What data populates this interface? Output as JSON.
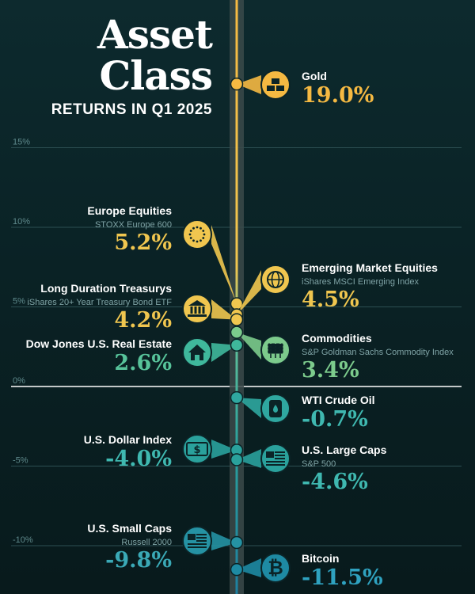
{
  "title": {
    "line1": "Asset",
    "line2": "Class",
    "subtitle": "RETURNS IN Q1 2025"
  },
  "colors": {
    "background": "#0b2427",
    "axis_bar": "#3b4a4a",
    "gold": "#f5b942",
    "yellow": "#f0c64f",
    "green": "#7ccb8c",
    "teal": "#2fa7a0",
    "blue": "#1e8aa3",
    "zero_line": "#ffffff"
  },
  "chart_data": {
    "type": "dot",
    "title": "Asset Class Returns in Q1 2025",
    "y_unit": "%",
    "ylim": [
      -12.5,
      20
    ],
    "yticks": [
      {
        "value": 15,
        "label": "15%"
      },
      {
        "value": 10,
        "label": "10%"
      },
      {
        "value": 5,
        "label": "5%"
      },
      {
        "value": 0,
        "label": "0%"
      },
      {
        "value": -5,
        "label": "-5%"
      },
      {
        "value": -10,
        "label": "-10%"
      }
    ],
    "points": [
      {
        "name": "Gold",
        "sub": "",
        "value_label": "19.0%",
        "value": 19.0,
        "side": "right",
        "icon": "gold-bars-icon",
        "color": "#f5b942",
        "value_color": "#f5b942"
      },
      {
        "name": "Europe Equities",
        "sub": "STOXX Europe 600",
        "value_label": "5.2%",
        "value": 5.2,
        "side": "left",
        "icon": "eu-flag-icon",
        "color": "#f0c64f",
        "value_color": "#f0c64f"
      },
      {
        "name": "Emerging Market Equities",
        "sub": "iShares MSCI Emerging Index",
        "value_label": "4.5%",
        "value": 4.5,
        "side": "right",
        "icon": "globe-icon",
        "color": "#f0c64f",
        "value_color": "#f0c64f"
      },
      {
        "name": "Long Duration Treasurys",
        "sub": "iShares 20+ Year Treasury Bond ETF",
        "value_label": "4.2%",
        "value": 4.2,
        "side": "left",
        "icon": "bank-icon",
        "color": "#f0c64f",
        "value_color": "#f0c64f"
      },
      {
        "name": "Commodities",
        "sub": "S&P Goldman Sachs Commodity Index",
        "value_label": "3.4%",
        "value": 3.4,
        "side": "right",
        "icon": "wheat-icon",
        "color": "#7ccb8c",
        "value_color": "#7ccb8c"
      },
      {
        "name": "Dow Jones U.S. Real Estate",
        "sub": "",
        "value_label": "2.6%",
        "value": 2.6,
        "side": "left",
        "icon": "house-icon",
        "color": "#3fb89c",
        "value_color": "#57c39a"
      },
      {
        "name": "WTI Crude Oil",
        "sub": "",
        "value_label": "-0.7%",
        "value": -0.7,
        "side": "right",
        "icon": "oil-barrel-icon",
        "color": "#2fa7a0",
        "value_color": "#3fb8b0"
      },
      {
        "name": "U.S. Dollar Index",
        "sub": "",
        "value_label": "-4.0%",
        "value": -4.0,
        "side": "left",
        "icon": "dollar-bill-icon",
        "color": "#2aa19c",
        "value_color": "#3fb8b0"
      },
      {
        "name": "U.S. Large Caps",
        "sub": "S&P 500",
        "value_label": "-4.6%",
        "value": -4.6,
        "side": "right",
        "icon": "us-flag-icon",
        "color": "#2aa19c",
        "value_color": "#3fb8b0"
      },
      {
        "name": "U.S. Small Caps",
        "sub": "Russell 2000",
        "value_label": "-9.8%",
        "value": -9.8,
        "side": "left",
        "icon": "us-flag-icon",
        "color": "#2592a3",
        "value_color": "#3aa9b6"
      },
      {
        "name": "Bitcoin",
        "sub": "",
        "value_label": "-11.5%",
        "value": -11.5,
        "side": "right",
        "icon": "bitcoin-icon",
        "color": "#1e8aa3",
        "value_color": "#2fa2c0"
      }
    ]
  }
}
